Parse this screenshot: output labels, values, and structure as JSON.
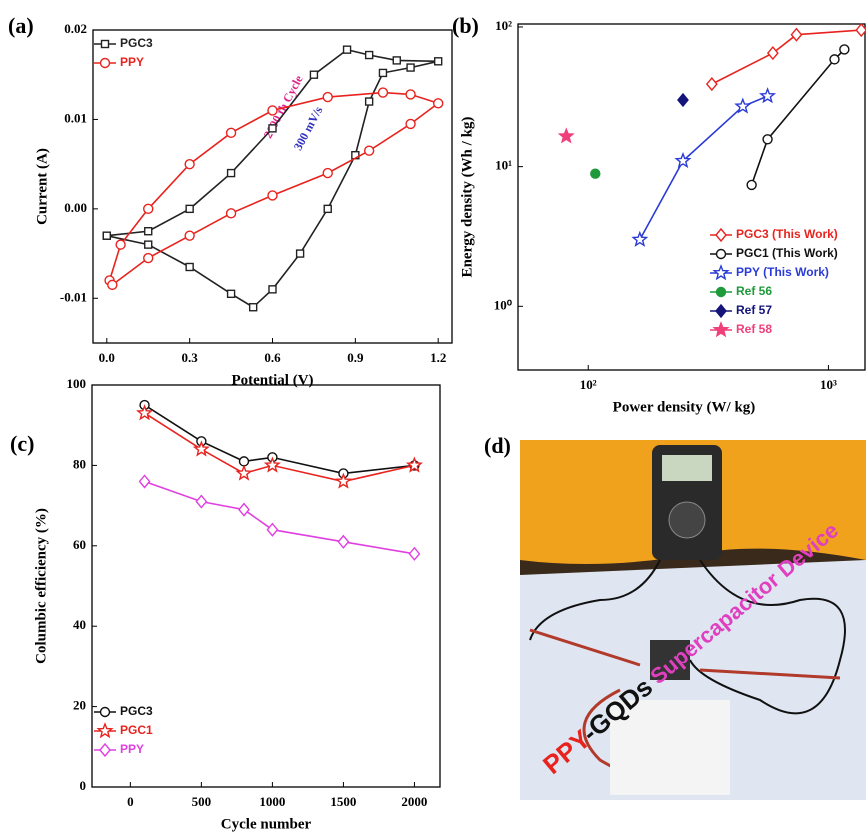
{
  "chart_data": [
    {
      "type": "line",
      "label": "(a)",
      "xlabel": "Potential (V)",
      "ylabel": "Current (A)",
      "xlim": [
        -0.05,
        1.25
      ],
      "ylim": [
        -0.015,
        0.02
      ],
      "xticks": [
        {
          "value": 0,
          "label": "0.0"
        },
        0.3,
        0.6,
        0.9,
        1.2
      ],
      "yticks": [
        -0.01,
        {
          "value": 0,
          "label": "0.00"
        },
        0.01,
        0.02
      ],
      "legend": "upper left",
      "annotations": [
        {
          "text": "2000 th Cycle",
          "color": "#e0208a"
        },
        {
          "text": "300 mV/s",
          "color": "#3030c0"
        }
      ],
      "series": [
        {
          "name": "PGC3",
          "color": "#222222",
          "marker": "square",
          "filled": false,
          "x": [
            0,
            0.15,
            0.3,
            0.45,
            0.6,
            0.75,
            0.87,
            0.95,
            1.05,
            1.2,
            1.1,
            1.0,
            0.95,
            0.9,
            0.8,
            0.7,
            0.6,
            0.53,
            0.45,
            0.3,
            0.15,
            0
          ],
          "values": [
            -0.003,
            -0.0025,
            0.0,
            0.004,
            0.009,
            0.015,
            0.0178,
            0.0172,
            0.0166,
            0.0165,
            0.0158,
            0.0152,
            0.012,
            0.006,
            0.0,
            -0.005,
            -0.009,
            -0.011,
            -0.0095,
            -0.0065,
            -0.004,
            -0.003
          ]
        },
        {
          "name": "PPY",
          "color": "#e8231e",
          "marker": "circle",
          "filled": false,
          "x": [
            0.01,
            0.05,
            0.15,
            0.3,
            0.45,
            0.6,
            0.8,
            1.0,
            1.1,
            1.2,
            1.1,
            0.95,
            0.8,
            0.6,
            0.45,
            0.3,
            0.15,
            0.02
          ],
          "values": [
            -0.008,
            -0.004,
            0.0,
            0.005,
            0.0085,
            0.011,
            0.0125,
            0.013,
            0.0128,
            0.0118,
            0.0095,
            0.0065,
            0.004,
            0.0015,
            -0.0005,
            -0.003,
            -0.0055,
            -0.0085
          ]
        }
      ]
    },
    {
      "type": "line",
      "label": "(b)",
      "xlabel": "Power density (W/ kg)",
      "ylabel": "Energy density (Wh / kg)",
      "xscale": "log",
      "yscale": "log",
      "xlim": [
        51,
        1420
      ],
      "ylim": [
        0.35,
        105
      ],
      "xticks": [
        {
          "value": 100,
          "label": "10²"
        },
        {
          "value": 1000,
          "label": "10³"
        }
      ],
      "yticks": [
        {
          "value": 1,
          "label": "10⁰"
        },
        {
          "value": 10,
          "label": "10¹"
        },
        {
          "value": 100,
          "label": "10²"
        }
      ],
      "legend": "lower right",
      "series": [
        {
          "name": "PGC3 (This Work)",
          "color": "#e8231e",
          "marker": "diamond",
          "filled": false,
          "x": [
            327,
            587,
            736,
            1370
          ],
          "values": [
            39,
            65,
            88,
            95
          ]
        },
        {
          "name": "PGC1 (This Work)",
          "color": "#111111",
          "marker": "circle",
          "filled": false,
          "x": [
            479,
            558,
            1060,
            1165
          ],
          "values": [
            7.4,
            15.7,
            58.6,
            69
          ]
        },
        {
          "name": "PPY  (This Work)",
          "color": "#2a3bd6",
          "marker": "star",
          "filled": false,
          "x": [
            164,
            248,
            440,
            558
          ],
          "values": [
            3.0,
            11,
            27,
            32
          ]
        },
        {
          "name": "Ref 56",
          "color": "#1e9a3a",
          "marker": "circle",
          "filled": true,
          "x": [
            107
          ],
          "values": [
            8.9
          ]
        },
        {
          "name": "Ref 57",
          "color": "#14147a",
          "marker": "diamond",
          "filled": true,
          "x": [
            248
          ],
          "values": [
            30
          ]
        },
        {
          "name": "Ref 58",
          "color": "#f0407a",
          "marker": "star",
          "filled": true,
          "x": [
            81
          ],
          "values": [
            16.5
          ]
        }
      ]
    },
    {
      "type": "line",
      "label": "(c)",
      "xlabel": "Cycle number",
      "ylabel": "Columbic efficiency (%)",
      "xlim": [
        -270,
        2180
      ],
      "ylim": [
        0,
        100
      ],
      "xticks": [
        0,
        500,
        1000,
        1500,
        2000
      ],
      "yticks": [
        0,
        20,
        40,
        60,
        80,
        100
      ],
      "legend": "lower left",
      "series": [
        {
          "name": "PGC3",
          "color": "#111111",
          "marker": "circle",
          "filled": false,
          "x": [
            100,
            500,
            800,
            1000,
            1500,
            2000
          ],
          "values": [
            95,
            86,
            81,
            82,
            78,
            80
          ]
        },
        {
          "name": "PGC1",
          "color": "#e8231e",
          "marker": "star",
          "filled": false,
          "x": [
            100,
            500,
            800,
            1000,
            1500,
            2000
          ],
          "values": [
            93,
            84,
            78,
            80,
            76,
            80
          ]
        },
        {
          "name": "PPY",
          "color": "#e040e0",
          "marker": "diamond",
          "filled": false,
          "x": [
            100,
            500,
            800,
            1000,
            1500,
            2000
          ],
          "values": [
            76,
            71,
            69,
            64,
            61,
            58
          ]
        }
      ]
    }
  ],
  "photo": {
    "label": "(d)",
    "caption": [
      "PPY",
      "-GQDs",
      "Supercapacitor Device"
    ]
  }
}
